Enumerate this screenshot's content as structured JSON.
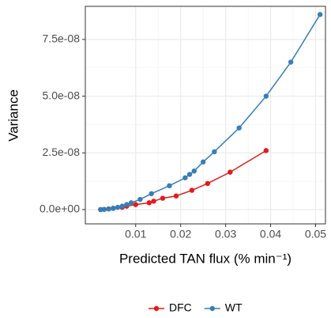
{
  "chart_data": {
    "type": "line",
    "x_label": "Predicted TAN flux (%  min⁻¹)",
    "y_label": "Variance",
    "xlim": [
      -0.0012,
      0.0522
    ],
    "ylim": [
      -6.3e-09,
      8.96e-08
    ],
    "xticks": [
      0.01,
      0.02,
      0.03,
      0.04,
      0.05
    ],
    "yticks": [
      {
        "value": 0,
        "label": "0.0e+00"
      },
      {
        "value": 2.5e-08,
        "label": "2.5e-08"
      },
      {
        "value": 5e-08,
        "label": "5.0e-08"
      },
      {
        "value": 7.5e-08,
        "label": "7.5e-08"
      }
    ],
    "grid": true,
    "legend": "bottom",
    "series": [
      {
        "name": "DFC",
        "color": "#e41a1c",
        "x": [
          0.0022,
          0.003,
          0.004,
          0.005,
          0.007,
          0.008,
          0.01,
          0.013,
          0.014,
          0.016,
          0.019,
          0.0225,
          0.026,
          0.031,
          0.039
        ],
        "values": [
          0,
          1e-10,
          3e-10,
          6e-10,
          1e-09,
          1.5e-09,
          2.2e-09,
          3e-09,
          3.7e-09,
          5e-09,
          6e-09,
          8.5e-09,
          1.15e-08,
          1.65e-08,
          2.6e-08
        ]
      },
      {
        "name": "WT",
        "color": "#377eb8",
        "x": [
          0.0022,
          0.003,
          0.004,
          0.005,
          0.006,
          0.007,
          0.008,
          0.009,
          0.011,
          0.0135,
          0.0175,
          0.021,
          0.022,
          0.023,
          0.025,
          0.0275,
          0.033,
          0.039,
          0.0445,
          0.051
        ],
        "values": [
          0,
          1e-10,
          3e-10,
          5e-10,
          1e-09,
          1.5e-09,
          2.2e-09,
          3e-09,
          4.5e-09,
          7e-09,
          1.05e-08,
          1.4e-08,
          1.55e-08,
          1.7e-08,
          2.1e-08,
          2.55e-08,
          3.6e-08,
          5e-08,
          6.5e-08,
          8.6e-08
        ]
      }
    ]
  }
}
